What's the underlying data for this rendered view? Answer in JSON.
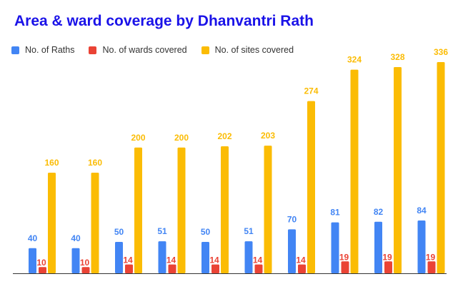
{
  "chart_data": {
    "type": "bar",
    "title": "Area & ward coverage by Dhanvantri Rath",
    "xlabel": "",
    "ylabel": "",
    "categories": [
      "",
      "",
      "",
      "",
      "",
      "",
      "",
      "",
      "",
      ""
    ],
    "series": [
      {
        "name": "No. of Raths",
        "color": "#4285f4",
        "values": [
          40,
          40,
          50,
          51,
          50,
          51,
          70,
          81,
          82,
          84
        ]
      },
      {
        "name": "No. of wards covered",
        "color": "#ea4335",
        "values": [
          10,
          10,
          14,
          14,
          14,
          14,
          14,
          19,
          19,
          19
        ]
      },
      {
        "name": "No. of sites covered",
        "color": "#fbbc04",
        "values": [
          160,
          160,
          200,
          200,
          202,
          203,
          274,
          324,
          328,
          336
        ]
      }
    ],
    "ylim": [
      0,
      336
    ],
    "grid": false,
    "legend": "top-left"
  }
}
